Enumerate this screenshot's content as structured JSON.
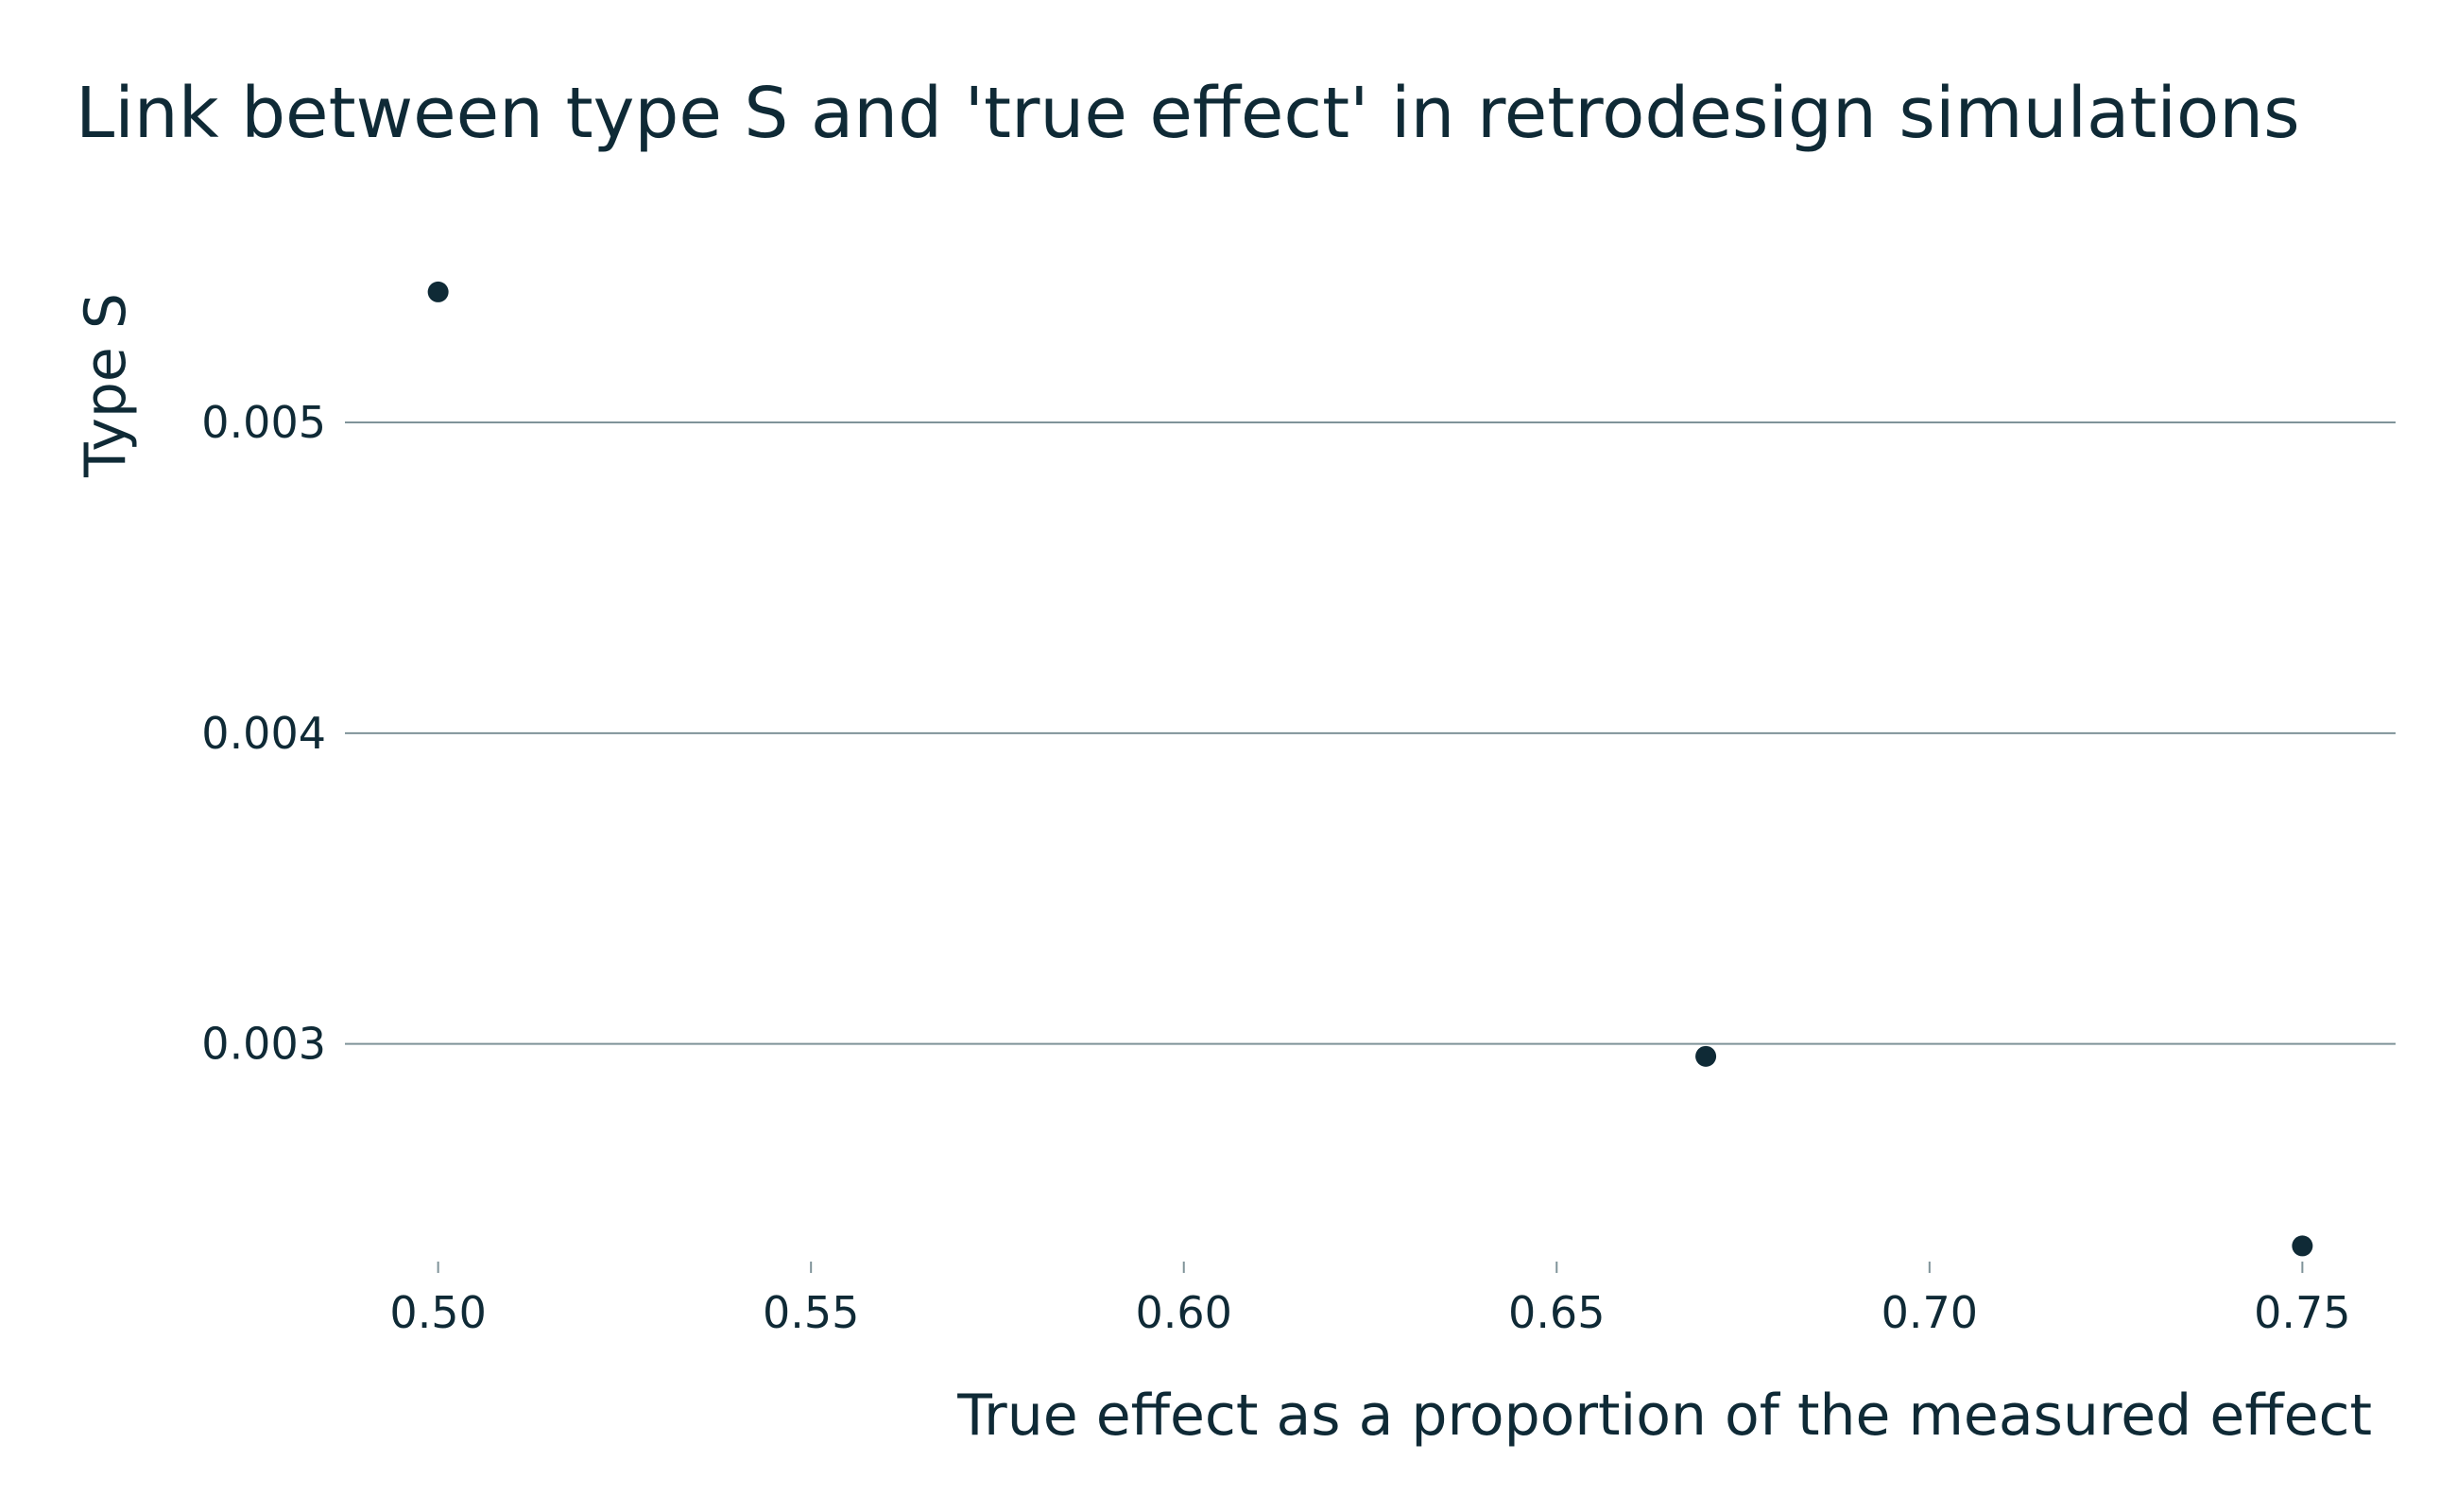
{
  "chart_data": {
    "type": "scatter",
    "title": "Link between type S and 'true effect' in retrodesign simulations",
    "xlabel": "True effect as a proportion of the measured effect",
    "ylabel": "Type S",
    "xlim": [
      0.4875,
      0.7625
    ],
    "ylim": [
      0.00233,
      0.00566
    ],
    "x_ticks": [
      0.5,
      0.55,
      0.6,
      0.65,
      0.7,
      0.75
    ],
    "x_tick_labels": [
      "0.50",
      "0.55",
      "0.60",
      "0.65",
      "0.70",
      "0.75"
    ],
    "y_ticks": [
      0.003,
      0.004,
      0.005
    ],
    "y_tick_labels": [
      "0.003",
      "0.004",
      "0.005"
    ],
    "grid": "horizontal-major",
    "legend": "none",
    "points": [
      {
        "x": 0.5,
        "y": 0.00542
      },
      {
        "x": 0.67,
        "y": 0.00296
      },
      {
        "x": 0.75,
        "y": 0.00235
      }
    ],
    "colors": {
      "text": "#0f2a36",
      "grid": "#7f9399",
      "point": "#0f2a36"
    }
  }
}
